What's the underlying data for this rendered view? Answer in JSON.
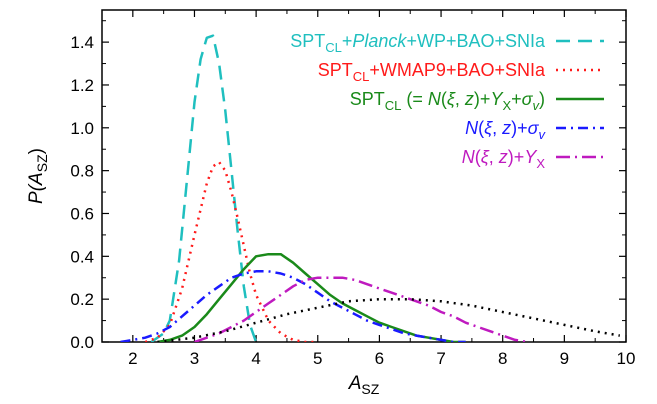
{
  "chart_data": {
    "type": "line",
    "xlim": [
      1.5,
      10
    ],
    "ylim": [
      0,
      1.55
    ],
    "xticks": [
      "2",
      "3",
      "4",
      "5",
      "6",
      "7",
      "8",
      "9",
      "10"
    ],
    "yticks": [
      "0.0",
      "0.2",
      "0.4",
      "0.6",
      "0.8",
      "1.0",
      "1.2",
      "1.4"
    ],
    "xlabel": {
      "main": "A",
      "sub": "SZ"
    },
    "ylabel": {
      "main": "P(A",
      "sub": "SZ",
      "close": ")"
    },
    "grid": false,
    "legend_position": "top-right",
    "series": [
      {
        "legend": [
          {
            "t": "SPT"
          },
          {
            "t": "CL",
            "sub": true
          },
          {
            "t": "+"
          },
          {
            "t": "Planck",
            "italic": true
          },
          {
            "t": "+WP+BAO+SNIa"
          }
        ],
        "color": "#1fbfbf",
        "dash": "14,8",
        "width": 2.5,
        "x": [
          2.3,
          2.5,
          2.6,
          2.75,
          2.9,
          3.0,
          3.1,
          3.2,
          3.3,
          3.4,
          3.5,
          3.6,
          3.7,
          3.8,
          3.9,
          4.0
        ],
        "y": [
          0.0,
          0.04,
          0.1,
          0.38,
          0.82,
          1.12,
          1.32,
          1.42,
          1.43,
          1.3,
          1.08,
          0.8,
          0.52,
          0.26,
          0.08,
          0.0
        ]
      },
      {
        "legend": [
          {
            "t": "SPT"
          },
          {
            "t": "CL",
            "sub": true
          },
          {
            "t": "+WMAP9+BAO+SNIa"
          }
        ],
        "color": "#ff1a1a",
        "dash": "2,5",
        "width": 2.5,
        "x": [
          2.2,
          2.4,
          2.6,
          2.8,
          3.0,
          3.2,
          3.3,
          3.4,
          3.5,
          3.6,
          3.7,
          3.8,
          3.9,
          4.0,
          4.2,
          4.4,
          4.6,
          4.8,
          5.0
        ],
        "y": [
          0.0,
          0.02,
          0.08,
          0.25,
          0.5,
          0.74,
          0.82,
          0.84,
          0.8,
          0.7,
          0.58,
          0.45,
          0.32,
          0.22,
          0.1,
          0.04,
          0.01,
          0.0,
          0.0
        ]
      },
      {
        "legend": [
          {
            "t": "SPT"
          },
          {
            "t": "CL",
            "sub": true
          },
          {
            "t": " (= "
          },
          {
            "t": "N",
            "italic": true
          },
          {
            "t": "("
          },
          {
            "t": "ξ",
            "italic": true
          },
          {
            "t": ", "
          },
          {
            "t": "z",
            "italic": true
          },
          {
            "t": ")+"
          },
          {
            "t": "Y",
            "italic": true
          },
          {
            "t": "X",
            "sub": true
          },
          {
            "t": "+"
          },
          {
            "t": "σ",
            "italic": true
          },
          {
            "t": "v",
            "sub": true,
            "italic": true
          },
          {
            "t": ")"
          }
        ],
        "color": "#1a8a1a",
        "dash": "",
        "width": 2.5,
        "x": [
          2.4,
          2.6,
          2.8,
          3.0,
          3.2,
          3.4,
          3.6,
          3.8,
          4.0,
          4.2,
          4.4,
          4.6,
          4.8,
          5.0,
          5.2,
          5.4,
          5.6,
          5.8,
          6.0,
          6.2,
          6.4,
          6.6,
          6.8,
          7.0,
          7.2,
          7.4
        ],
        "y": [
          0.0,
          0.01,
          0.03,
          0.07,
          0.13,
          0.2,
          0.27,
          0.34,
          0.4,
          0.41,
          0.41,
          0.37,
          0.32,
          0.27,
          0.22,
          0.18,
          0.15,
          0.12,
          0.09,
          0.07,
          0.05,
          0.03,
          0.02,
          0.01,
          0.0,
          0.0
        ]
      },
      {
        "legend": [
          {
            "t": "N",
            "italic": true
          },
          {
            "t": "("
          },
          {
            "t": "ξ",
            "italic": true
          },
          {
            "t": ", "
          },
          {
            "t": "z",
            "italic": true
          },
          {
            "t": ")+"
          },
          {
            "t": "σ",
            "italic": true
          },
          {
            "t": "v",
            "sub": true,
            "italic": true
          }
        ],
        "color": "#1a1aff",
        "dash": "10,5,2,5",
        "width": 2.5,
        "x": [
          1.8,
          2.0,
          2.2,
          2.4,
          2.6,
          2.8,
          3.0,
          3.2,
          3.4,
          3.6,
          3.8,
          4.0,
          4.2,
          4.4,
          4.6,
          4.8,
          5.0,
          5.2,
          5.4,
          5.6,
          5.8,
          6.0,
          6.2,
          6.4,
          6.6,
          6.8,
          7.0,
          7.2,
          7.4
        ],
        "y": [
          0.0,
          0.01,
          0.02,
          0.04,
          0.07,
          0.12,
          0.17,
          0.22,
          0.26,
          0.3,
          0.32,
          0.33,
          0.33,
          0.32,
          0.3,
          0.27,
          0.23,
          0.19,
          0.16,
          0.13,
          0.1,
          0.08,
          0.06,
          0.04,
          0.03,
          0.02,
          0.01,
          0.0,
          0.0
        ]
      },
      {
        "legend": [
          {
            "t": "N",
            "italic": true
          },
          {
            "t": "("
          },
          {
            "t": "ξ",
            "italic": true
          },
          {
            "t": ", "
          },
          {
            "t": "z",
            "italic": true
          },
          {
            "t": ")+"
          },
          {
            "t": "Y",
            "italic": true
          },
          {
            "t": "X",
            "sub": true
          }
        ],
        "color": "#bf1abf",
        "dash": "14,5,2,5",
        "width": 2.5,
        "x": [
          3.0,
          3.2,
          3.4,
          3.6,
          3.8,
          4.0,
          4.2,
          4.4,
          4.6,
          4.8,
          5.0,
          5.2,
          5.4,
          5.6,
          5.8,
          6.0,
          6.2,
          6.4,
          6.6,
          6.8,
          7.0,
          7.2,
          7.4,
          7.6,
          7.8,
          8.0,
          8.2,
          8.4
        ],
        "y": [
          0.0,
          0.02,
          0.04,
          0.07,
          0.1,
          0.14,
          0.18,
          0.22,
          0.26,
          0.29,
          0.3,
          0.3,
          0.3,
          0.29,
          0.27,
          0.25,
          0.23,
          0.21,
          0.19,
          0.17,
          0.14,
          0.12,
          0.09,
          0.07,
          0.05,
          0.03,
          0.01,
          0.0
        ]
      },
      {
        "legend": null,
        "color": "#000000",
        "dash": "2,5",
        "width": 2.5,
        "x": [
          2.4,
          3.0,
          3.5,
          4.0,
          4.5,
          5.0,
          5.5,
          6.0,
          6.5,
          7.0,
          7.5,
          8.0,
          8.5,
          9.0,
          9.5,
          9.9
        ],
        "y": [
          0.0,
          0.02,
          0.05,
          0.09,
          0.13,
          0.16,
          0.19,
          0.2,
          0.2,
          0.19,
          0.17,
          0.14,
          0.11,
          0.08,
          0.05,
          0.03
        ]
      }
    ]
  }
}
